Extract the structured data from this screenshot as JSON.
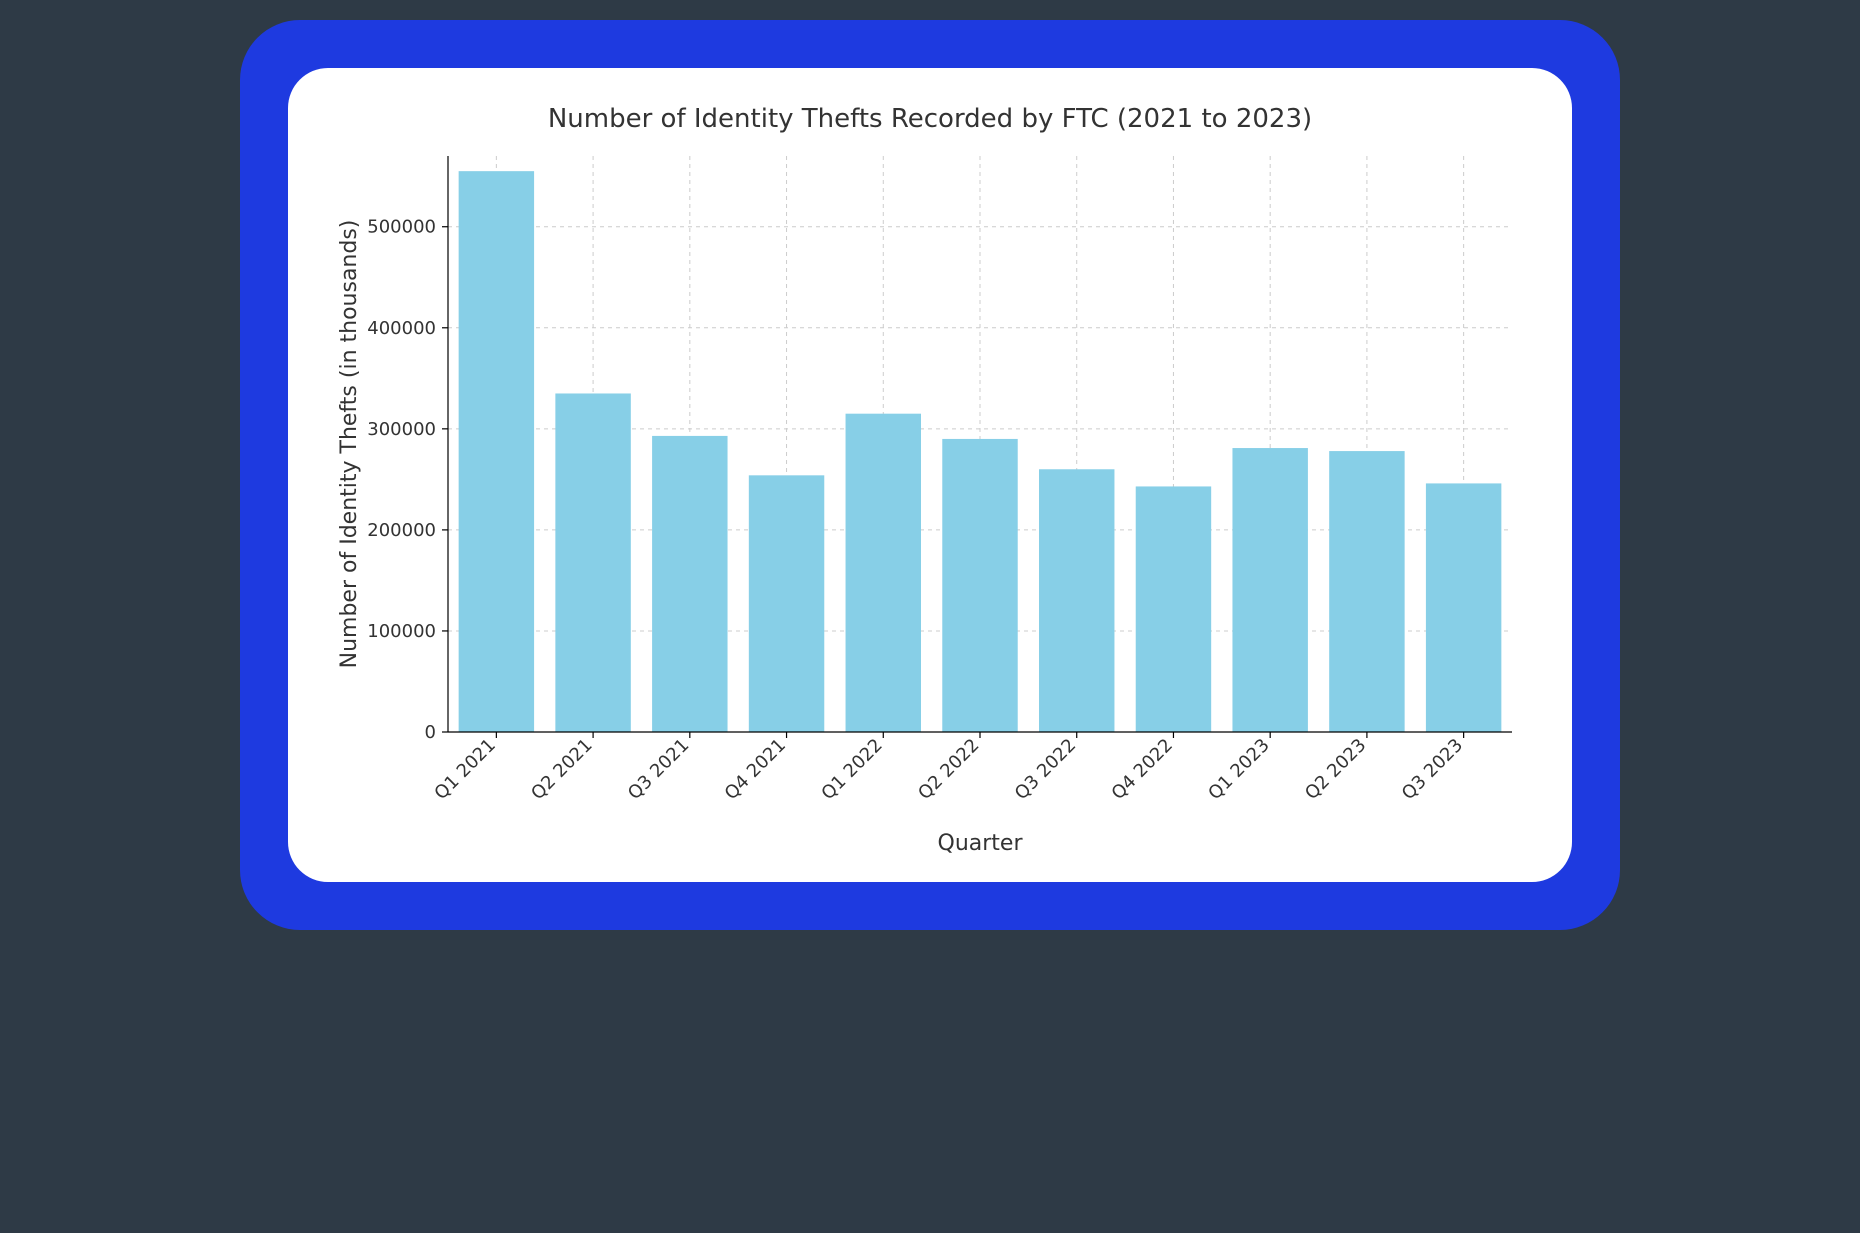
{
  "chart": {
    "type": "bar",
    "title": "Number of Identity Thefts Recorded by FTC (2021 to 2023)",
    "title_fontsize": 26,
    "title_color": "#333333",
    "xlabel": "Quarter",
    "ylabel": "Number of Identity Thefts (in thousands)",
    "label_fontsize": 22,
    "label_color": "#333333",
    "categories": [
      "Q1 2021",
      "Q2 2021",
      "Q3 2021",
      "Q4 2021",
      "Q1 2022",
      "Q2 2022",
      "Q3 2022",
      "Q4 2022",
      "Q1 2023",
      "Q2 2023",
      "Q3 2023"
    ],
    "values": [
      555000,
      335000,
      293000,
      254000,
      315000,
      290000,
      260000,
      243000,
      281000,
      278000,
      246000
    ],
    "bar_color": "#87cfe7",
    "tick_label_fontsize": 18,
    "tick_label_color": "#333333",
    "ylim": [
      0,
      570000
    ],
    "yticks": [
      0,
      100000,
      200000,
      300000,
      400000,
      500000
    ],
    "xtick_rotation": 45,
    "grid_color": "#cccccc",
    "grid_dash": "4 4",
    "axis_color": "#000000",
    "background_color": "#ffffff",
    "outer_frame_color": "#1e3ae0",
    "outer_frame_radius": 60,
    "card_radius": 40,
    "bar_width_ratio": 0.78
  }
}
